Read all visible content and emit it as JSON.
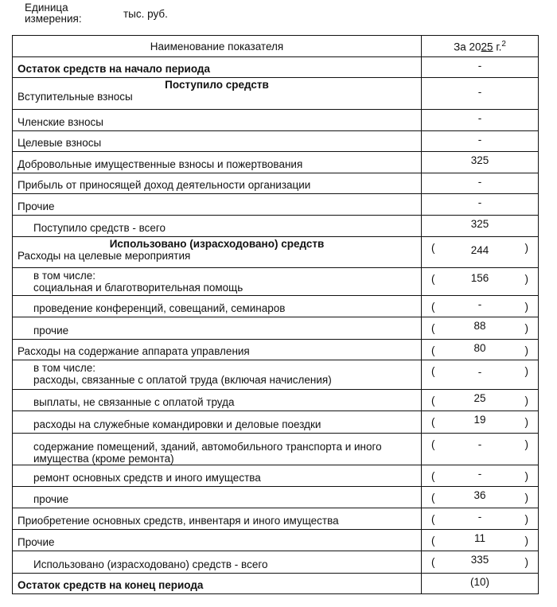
{
  "unit": {
    "label_line1": "Единица",
    "label_line2": "измерения:",
    "value": "тыс. руб."
  },
  "header": {
    "name": "Наименование показателя",
    "period_prefix": "За 20",
    "period_year": "25",
    "period_suffix": " г.",
    "footnote": "2"
  },
  "rows": [
    {
      "label": "Остаток средств на начало периода",
      "value": "-",
      "bold": true,
      "h": 26
    },
    {
      "heading": "Поступило средств",
      "label": "Вступительные взносы",
      "value": "-",
      "h": 40
    },
    {
      "label": "Членские взносы",
      "value": "-",
      "h": 27
    },
    {
      "label": "Целевые взносы",
      "value": "-",
      "h": 26
    },
    {
      "label": "Добровольные имущественные взносы и пожертвования",
      "value": "325",
      "h": 27
    },
    {
      "label": "Прибыль от приносящей доход деятельности организации",
      "value": "-",
      "h": 26
    },
    {
      "label": "Прочие",
      "value": "-",
      "h": 27
    },
    {
      "label": "Поступило средств - всего",
      "value": "325",
      "indent": true,
      "h": 27
    },
    {
      "heading": "Использовано (израсходовано) средств",
      "label": "Расходы на целевые мероприятия",
      "value": "244",
      "paren": true,
      "h": 39
    },
    {
      "prefix": "в том числе:",
      "label": "социальная и благотворительная помощь",
      "value": "156",
      "paren": true,
      "indent": true,
      "h": 35
    },
    {
      "label": "проведение конференций, совещаний, семинаров",
      "value": "-",
      "paren": true,
      "indent": true,
      "h": 27
    },
    {
      "label": "прочие",
      "value": "88",
      "paren": true,
      "indent": true,
      "h": 28
    },
    {
      "label": "Расходы на содержание аппарата управления",
      "value": "80",
      "paren": true,
      "h": 26
    },
    {
      "prefix": "в том числе:",
      "label": "расходы, связанные с оплатой труда (включая начисления)",
      "value": "-",
      "paren": true,
      "indent": true,
      "h": 37
    },
    {
      "label": "выплаты, не связанные с оплатой труда",
      "value": "25",
      "paren": true,
      "indent": true,
      "h": 27
    },
    {
      "label": "расходы на служебные командировки и деловые поездки",
      "value": "19",
      "paren": true,
      "indent": true,
      "h": 28
    },
    {
      "label": "содержание помещений, зданий, автомобильного транспорта и иного имущества (кроме ремонта)",
      "value": "-",
      "paren": true,
      "indent": true,
      "h": 36
    },
    {
      "label": "ремонт основных средств и иного имущества",
      "value": "-",
      "paren": true,
      "indent": true,
      "h": 27
    },
    {
      "label": "прочие",
      "value": "36",
      "paren": true,
      "indent": true,
      "h": 27
    },
    {
      "label": "Приобретение основных средств, инвентаря и иного имущества",
      "value": "-",
      "paren": true,
      "h": 27
    },
    {
      "label": "Прочие",
      "value": "11",
      "paren": true,
      "h": 27
    },
    {
      "label": "Использовано (израсходовано) средств - всего",
      "value": "335",
      "paren": true,
      "indent": true,
      "h": 28
    },
    {
      "label": "Остаток средств на конец периода",
      "value": "(10)",
      "bold": true,
      "h": 26
    }
  ]
}
